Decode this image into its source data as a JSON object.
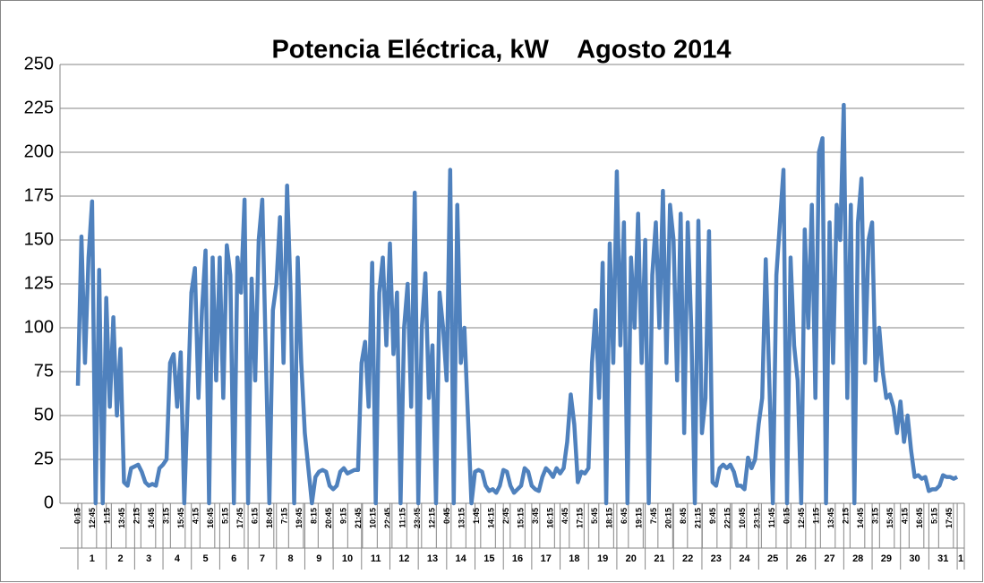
{
  "chart_data": {
    "type": "line",
    "title": "Potencia Eléctrica, kW    Agosto 2014",
    "ylim": [
      0,
      250
    ],
    "yticks": [
      0,
      25,
      50,
      75,
      100,
      125,
      150,
      175,
      200,
      225,
      250
    ],
    "grid": true,
    "days": [
      {
        "label": "1",
        "times": [
          "0:15",
          "12:45"
        ]
      },
      {
        "label": "2",
        "times": [
          "1:15",
          "13:45"
        ]
      },
      {
        "label": "3",
        "times": [
          "2:15",
          "14:45"
        ]
      },
      {
        "label": "4",
        "times": [
          "3:15",
          "15:45"
        ]
      },
      {
        "label": "5",
        "times": [
          "4:15",
          "16:45"
        ]
      },
      {
        "label": "6",
        "times": [
          "5:15",
          "17:45"
        ]
      },
      {
        "label": "7",
        "times": [
          "6:15",
          "18:45"
        ]
      },
      {
        "label": "8",
        "times": [
          "7:15",
          "19:45"
        ]
      },
      {
        "label": "9",
        "times": [
          "8:15",
          "20:45"
        ]
      },
      {
        "label": "10",
        "times": [
          "9:15",
          "21:45"
        ]
      },
      {
        "label": "11",
        "times": [
          "10:15",
          "22:45"
        ]
      },
      {
        "label": "12",
        "times": [
          "11:15",
          "23:45"
        ]
      },
      {
        "label": "13",
        "times": [
          "12:15"
        ]
      },
      {
        "label": "14",
        "times": [
          "0:45",
          "13:15"
        ]
      },
      {
        "label": "15",
        "times": [
          "1:45",
          "14:15"
        ]
      },
      {
        "label": "16",
        "times": [
          "2:45",
          "15:15"
        ]
      },
      {
        "label": "17",
        "times": [
          "3:45",
          "16:15"
        ]
      },
      {
        "label": "18",
        "times": [
          "4:45",
          "17:15"
        ]
      },
      {
        "label": "19",
        "times": [
          "5:45",
          "18:15"
        ]
      },
      {
        "label": "20",
        "times": [
          "6:45",
          "19:15"
        ]
      },
      {
        "label": "21",
        "times": [
          "7:45",
          "20:15"
        ]
      },
      {
        "label": "22",
        "times": [
          "8:45",
          "21:15"
        ]
      },
      {
        "label": "23",
        "times": [
          "9:45",
          "22:15"
        ]
      },
      {
        "label": "24",
        "times": [
          "10:45",
          "23:15"
        ]
      },
      {
        "label": "25",
        "times": [
          "11:45"
        ]
      },
      {
        "label": "26",
        "times": [
          "0:15",
          "12:45"
        ]
      },
      {
        "label": "27",
        "times": [
          "1:15",
          "13:45"
        ]
      },
      {
        "label": "28",
        "times": [
          "2:15",
          "14:45"
        ]
      },
      {
        "label": "29",
        "times": [
          "3:15",
          "15:45"
        ]
      },
      {
        "label": "30",
        "times": [
          "4:15",
          "16:45"
        ]
      },
      {
        "label": "31",
        "times": [
          "5:15",
          "17:45"
        ]
      },
      {
        "label": "1",
        "times": []
      }
    ],
    "series": [
      {
        "name": "Potencia",
        "color": "#4f81bd",
        "values": [
          67,
          152,
          80,
          140,
          172,
          0,
          133,
          0,
          117,
          55,
          106,
          50,
          88,
          12,
          10,
          20,
          21,
          22,
          18,
          12,
          10,
          11,
          10,
          20,
          22,
          25,
          80,
          85,
          55,
          86,
          0,
          60,
          120,
          134,
          60,
          110,
          144,
          0,
          140,
          70,
          140,
          60,
          147,
          130,
          0,
          140,
          120,
          173,
          0,
          128,
          70,
          150,
          173,
          85,
          0,
          110,
          125,
          163,
          80,
          181,
          120,
          0,
          140,
          80,
          40,
          20,
          0,
          15,
          18,
          19,
          18,
          10,
          8,
          10,
          18,
          20,
          17,
          18,
          19,
          19,
          80,
          92,
          55,
          137,
          0,
          120,
          140,
          90,
          148,
          85,
          120,
          0,
          100,
          125,
          55,
          177,
          0,
          100,
          131,
          60,
          90,
          0,
          120,
          100,
          70,
          190,
          0,
          170,
          80,
          100,
          50,
          0,
          18,
          19,
          18,
          10,
          7,
          8,
          6,
          10,
          19,
          18,
          10,
          6,
          8,
          10,
          20,
          18,
          10,
          8,
          7,
          15,
          20,
          18,
          15,
          20,
          17,
          20,
          35,
          62,
          45,
          12,
          18,
          17,
          20,
          80,
          110,
          60,
          137,
          0,
          148,
          80,
          189,
          90,
          160,
          0,
          140,
          100,
          165,
          80,
          150,
          0,
          130,
          160,
          100,
          178,
          80,
          170,
          150,
          70,
          165,
          40,
          160,
          100,
          0,
          161,
          40,
          60,
          155,
          12,
          10,
          20,
          22,
          20,
          22,
          18,
          10,
          10,
          8,
          26,
          20,
          25,
          45,
          60,
          139,
          70,
          0,
          130,
          160,
          190,
          0,
          140,
          90,
          70,
          0,
          156,
          100,
          170,
          60,
          200,
          208,
          0,
          160,
          80,
          170,
          150,
          227,
          60,
          170,
          0,
          160,
          185,
          80,
          150,
          160,
          70,
          100,
          75,
          60,
          62,
          55,
          40,
          58,
          35,
          50,
          30,
          15,
          16,
          14,
          15,
          7,
          8,
          8,
          10,
          16,
          15,
          15,
          14,
          15
        ]
      }
    ]
  }
}
